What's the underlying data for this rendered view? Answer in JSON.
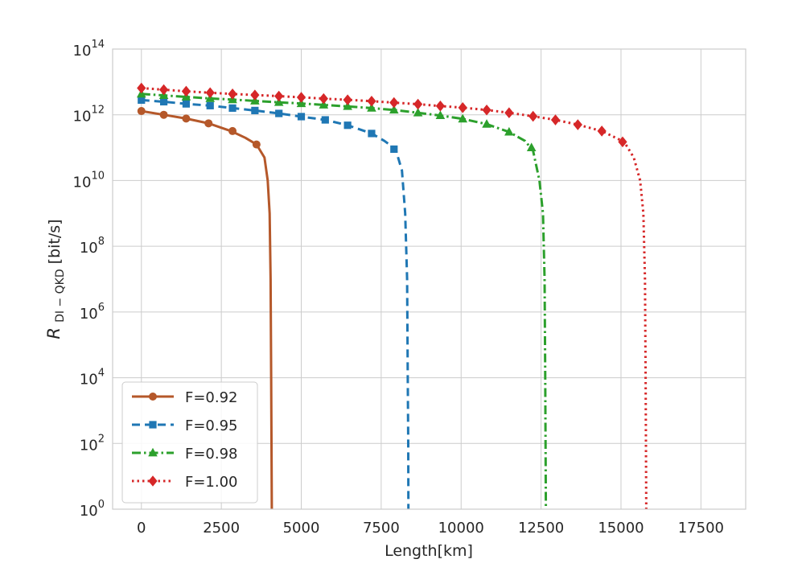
{
  "chart_data": {
    "type": "line",
    "xlabel": "Length[km]",
    "ylabel": {
      "symbol": "R",
      "subscript": "DI − QKD",
      "unit": "[bit/s]"
    },
    "yscale": "log",
    "xlim": [
      -900,
      18900
    ],
    "ylim": [
      1,
      100000000000000.0
    ],
    "xticks": [
      0,
      2500,
      5000,
      7500,
      10000,
      12500,
      15000,
      17500
    ],
    "xtick_labels": [
      "0",
      "2500",
      "5000",
      "7500",
      "10000",
      "12500",
      "15000",
      "17500"
    ],
    "yticks": [
      {
        "value": 1,
        "base": "10",
        "exp": "0"
      },
      {
        "value": 100,
        "base": "10",
        "exp": "2"
      },
      {
        "value": 10000,
        "base": "10",
        "exp": "4"
      },
      {
        "value": 1000000,
        "base": "10",
        "exp": "6"
      },
      {
        "value": 100000000,
        "base": "10",
        "exp": "8"
      },
      {
        "value": 10000000000,
        "base": "10",
        "exp": "10"
      },
      {
        "value": 1000000000000,
        "base": "10",
        "exp": "12"
      },
      {
        "value": 100000000000000,
        "base": "10",
        "exp": "14"
      }
    ],
    "grid": true,
    "legend_position": "lower-left",
    "series": [
      {
        "name": "F=0.92",
        "color": "#b5582a",
        "linestyle": "solid",
        "marker": "circle",
        "curve": {
          "x": [
            0,
            700,
            1400,
            2100,
            2800,
            3250,
            3600,
            3850,
            3950,
            4010,
            4040,
            4060,
            4070,
            4080
          ],
          "y": [
            1300000000000.0,
            1000000000000.0,
            770000000000.0,
            550000000000.0,
            320000000000.0,
            200000000000.0,
            125000000000.0,
            50000000000.0,
            10000000000.0,
            1000000000.0,
            10000000.0,
            10000.0,
            100.0,
            1
          ]
        },
        "markers": {
          "x": [
            0,
            700,
            1400,
            2100,
            2850,
            3600
          ],
          "y": [
            1300000000000.0,
            1000000000000.0,
            770000000000.0,
            550000000000.0,
            320000000000.0,
            125000000000.0
          ]
        }
      },
      {
        "name": "F=0.95",
        "color": "#1f77b4",
        "linestyle": "dashed",
        "marker": "square",
        "curve": {
          "x": [
            0,
            700,
            1400,
            2150,
            2850,
            3550,
            4300,
            5000,
            5750,
            6450,
            7200,
            7600,
            7950,
            8150,
            8250,
            8310,
            8330,
            8345,
            8350
          ],
          "y": [
            2800000000000.0,
            2500000000000.0,
            2150000000000.0,
            1900000000000.0,
            1600000000000.0,
            1350000000000.0,
            1100000000000.0,
            880000000000.0,
            700000000000.0,
            480000000000.0,
            270000000000.0,
            160000000000.0,
            90000000000.0,
            20000000000.0,
            1000000000.0,
            10000000.0,
            10000.0,
            100.0,
            1
          ]
        },
        "markers": {
          "x": [
            0,
            700,
            1400,
            2150,
            2850,
            3550,
            4300,
            5000,
            5750,
            6450,
            7200,
            7900
          ],
          "y": [
            2800000000000.0,
            2500000000000.0,
            2150000000000.0,
            1900000000000.0,
            1600000000000.0,
            1350000000000.0,
            1100000000000.0,
            880000000000.0,
            700000000000.0,
            480000000000.0,
            270000000000.0,
            90000000000.0
          ]
        }
      },
      {
        "name": "F=0.98",
        "color": "#2ca02c",
        "linestyle": "dashdot",
        "marker": "triangle",
        "curve": {
          "x": [
            0,
            700,
            1400,
            2150,
            2850,
            3550,
            4300,
            5000,
            5700,
            6450,
            7200,
            7900,
            8650,
            9350,
            10050,
            10800,
            11500,
            12000,
            12250,
            12450,
            12560,
            12610,
            12630,
            12640,
            12650
          ],
          "y": [
            4300000000000.0,
            3900000000000.0,
            3500000000000.0,
            3150000000000.0,
            2900000000000.0,
            2650000000000.0,
            2400000000000.0,
            2200000000000.0,
            2000000000000.0,
            1800000000000.0,
            1600000000000.0,
            1400000000000.0,
            1150000000000.0,
            950000000000.0,
            750000000000.0,
            520000000000.0,
            300000000000.0,
            160000000000.0,
            80000000000.0,
            10000000000.0,
            1000000000.0,
            10000000.0,
            10000.0,
            100.0,
            1
          ]
        },
        "markers": {
          "x": [
            0,
            700,
            1400,
            2150,
            2850,
            3550,
            4300,
            5000,
            5700,
            6450,
            7200,
            7900,
            8650,
            9350,
            10050,
            10800,
            11500,
            12200
          ],
          "y": [
            4300000000000.0,
            3900000000000.0,
            3500000000000.0,
            3150000000000.0,
            2900000000000.0,
            2650000000000.0,
            2400000000000.0,
            2200000000000.0,
            2000000000000.0,
            1800000000000.0,
            1600000000000.0,
            1400000000000.0,
            1150000000000.0,
            950000000000.0,
            750000000000.0,
            520000000000.0,
            300000000000.0,
            100000000000.0
          ]
        }
      },
      {
        "name": "F=1.00",
        "color": "#d62728",
        "linestyle": "dotted",
        "marker": "diamond",
        "curve": {
          "x": [
            0,
            700,
            1400,
            2150,
            2850,
            3550,
            4300,
            5000,
            5700,
            6450,
            7200,
            7900,
            8650,
            9350,
            10050,
            10800,
            11500,
            12250,
            12950,
            13650,
            14400,
            15100,
            15400,
            15600,
            15700,
            15750,
            15770,
            15780,
            15790
          ],
          "y": [
            6500000000000.0,
            5800000000000.0,
            5200000000000.0,
            4700000000000.0,
            4300000000000.0,
            4000000000000.0,
            3700000000000.0,
            3400000000000.0,
            3100000000000.0,
            2850000000000.0,
            2600000000000.0,
            2350000000000.0,
            2100000000000.0,
            1850000000000.0,
            1650000000000.0,
            1400000000000.0,
            1150000000000.0,
            900000000000.0,
            700000000000.0,
            500000000000.0,
            320000000000.0,
            150000000000.0,
            50000000000.0,
            10000000000.0,
            1000000000.0,
            10000000.0,
            10000.0,
            100.0,
            1
          ]
        },
        "markers": {
          "x": [
            0,
            700,
            1400,
            2150,
            2850,
            3550,
            4300,
            5000,
            5700,
            6450,
            7200,
            7900,
            8650,
            9350,
            10050,
            10800,
            11500,
            12250,
            12950,
            13650,
            14400,
            15050
          ],
          "y": [
            6500000000000.0,
            5800000000000.0,
            5200000000000.0,
            4700000000000.0,
            4300000000000.0,
            4000000000000.0,
            3700000000000.0,
            3400000000000.0,
            3100000000000.0,
            2850000000000.0,
            2600000000000.0,
            2350000000000.0,
            2100000000000.0,
            1850000000000.0,
            1650000000000.0,
            1400000000000.0,
            1150000000000.0,
            900000000000.0,
            700000000000.0,
            500000000000.0,
            320000000000.0,
            150000000000.0
          ]
        }
      }
    ]
  }
}
